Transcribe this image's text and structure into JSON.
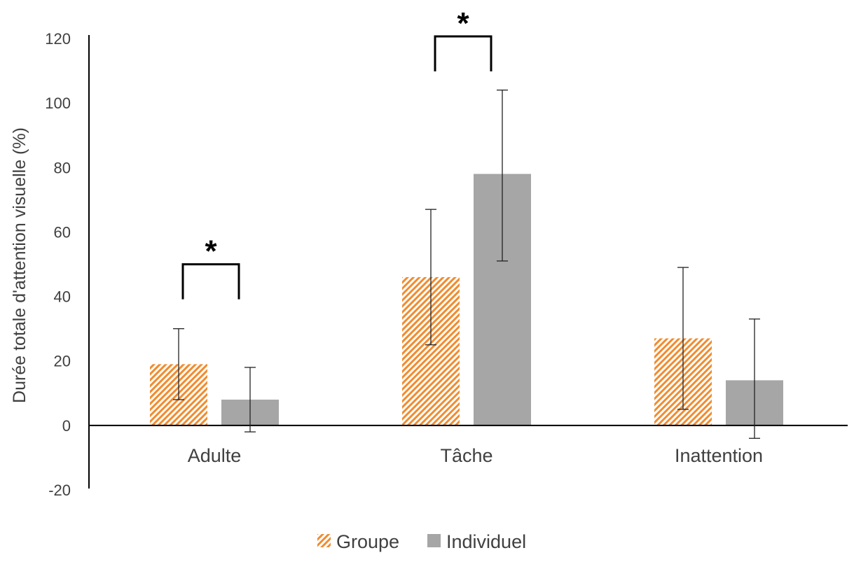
{
  "chart_data": {
    "type": "bar",
    "title": "",
    "xlabel": "",
    "ylabel": "Durée totale d'attention visuelle (%)",
    "ylim": [
      -20,
      120
    ],
    "yticks": [
      -20,
      0,
      20,
      40,
      60,
      80,
      100,
      120
    ],
    "categories": [
      "Adulte",
      "Tâche",
      "Inattention"
    ],
    "series": [
      {
        "name": "Groupe",
        "values": [
          19,
          46,
          27
        ],
        "error_low": [
          8,
          25,
          5
        ],
        "error_high": [
          30,
          67,
          49
        ],
        "color": "#F08C2F",
        "pattern": "hatched"
      },
      {
        "name": "Individuel",
        "values": [
          8,
          78,
          14
        ],
        "error_low": [
          -2,
          51,
          -4
        ],
        "error_high": [
          18,
          104,
          33
        ],
        "color": "#A6A6A6",
        "pattern": "solid"
      }
    ],
    "significance": [
      {
        "category": "Adulte",
        "label": "*"
      },
      {
        "category": "Tâche",
        "label": "*"
      }
    ],
    "grid": false,
    "legend_position": "bottom"
  }
}
